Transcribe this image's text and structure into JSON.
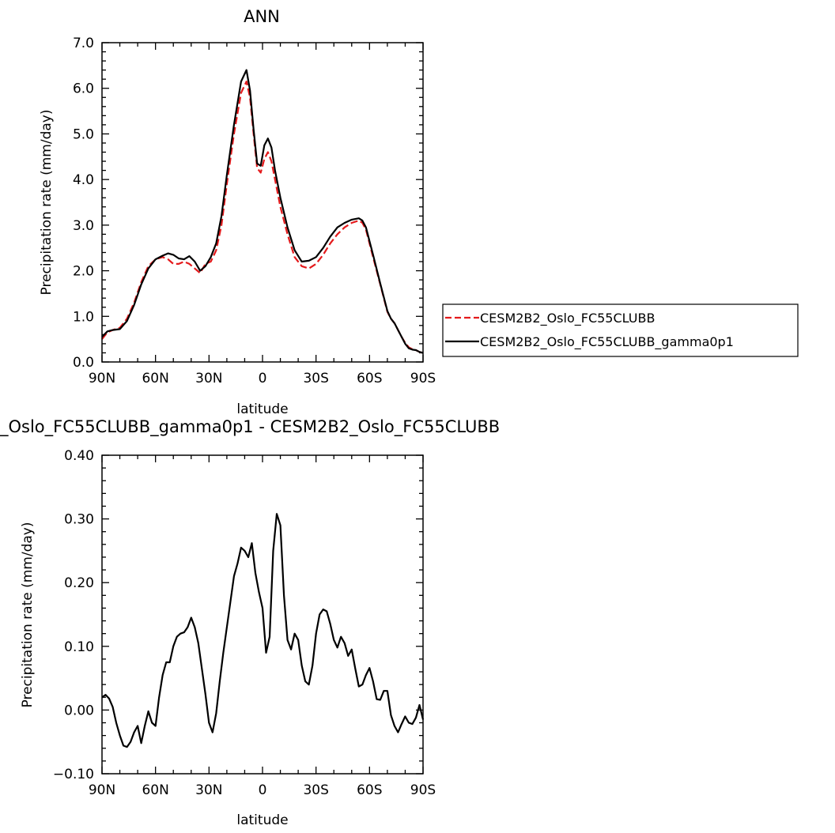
{
  "chart_data": [
    {
      "type": "line",
      "title": "ANN",
      "xlabel": "latitude",
      "ylabel": "Precipitation rate (mm/day)",
      "xlim": [
        90,
        -90
      ],
      "ylim": [
        0,
        7
      ],
      "xticks": [
        90,
        60,
        30,
        0,
        -30,
        -60,
        -90
      ],
      "xtick_labels": [
        "90N",
        "60N",
        "30N",
        "0",
        "30S",
        "60S",
        "90S"
      ],
      "yticks": [
        0,
        1,
        2,
        3,
        4,
        5,
        6,
        7
      ],
      "ytick_labels": [
        "0.0",
        "1.0",
        "2.0",
        "3.0",
        "4.0",
        "5.0",
        "6.0",
        "7.0"
      ],
      "grid": false,
      "legend_position": "right",
      "series": [
        {
          "name": "CESM2B2_Oslo_FC55CLUBB",
          "color": "#e41a1c",
          "dash": "dashed",
          "x": [
            90,
            87,
            84,
            80,
            76,
            72,
            68,
            64,
            60,
            56,
            53,
            50,
            47,
            44,
            41,
            38,
            35,
            32,
            29,
            26,
            23,
            20,
            16,
            12,
            9,
            7,
            5,
            3,
            1,
            -1,
            -3,
            -5,
            -7,
            -10,
            -14,
            -18,
            -22,
            -26,
            -30,
            -34,
            -38,
            -42,
            -46,
            -50,
            -54,
            -56,
            -58,
            -62,
            -66,
            -70,
            -72,
            -74,
            -76,
            -78,
            -80,
            -82,
            -84,
            -86,
            -88,
            -90
          ],
          "y": [
            0.5,
            0.65,
            0.7,
            0.75,
            0.95,
            1.3,
            1.75,
            2.1,
            2.25,
            2.3,
            2.25,
            2.15,
            2.15,
            2.2,
            2.15,
            2.05,
            1.95,
            2.15,
            2.2,
            2.45,
            3.0,
            3.9,
            5.0,
            5.9,
            6.15,
            5.8,
            5.0,
            4.25,
            4.15,
            4.45,
            4.6,
            4.4,
            4.0,
            3.4,
            2.8,
            2.3,
            2.1,
            2.05,
            2.15,
            2.35,
            2.6,
            2.8,
            2.95,
            3.05,
            3.1,
            3.05,
            2.9,
            2.3,
            1.7,
            1.1,
            0.95,
            0.85,
            0.7,
            0.55,
            0.42,
            0.32,
            0.28,
            0.26,
            0.22,
            0.2
          ]
        },
        {
          "name": "CESM2B2_Oslo_FC55CLUBB_gamma0p1",
          "color": "#000000",
          "dash": "solid",
          "x": [
            90,
            87,
            84,
            80,
            76,
            72,
            68,
            64,
            60,
            56,
            53,
            50,
            47,
            44,
            41,
            38,
            35,
            32,
            29,
            26,
            23,
            20,
            16,
            12,
            9,
            7,
            5,
            3,
            1,
            -1,
            -3,
            -5,
            -7,
            -10,
            -14,
            -18,
            -22,
            -26,
            -30,
            -34,
            -38,
            -42,
            -46,
            -50,
            -54,
            -56,
            -58,
            -62,
            -66,
            -70,
            -72,
            -74,
            -76,
            -78,
            -80,
            -82,
            -84,
            -86,
            -88,
            -90
          ],
          "y": [
            0.55,
            0.67,
            0.7,
            0.72,
            0.9,
            1.25,
            1.7,
            2.05,
            2.25,
            2.33,
            2.38,
            2.35,
            2.27,
            2.25,
            2.32,
            2.2,
            2.0,
            2.1,
            2.3,
            2.6,
            3.2,
            4.1,
            5.2,
            6.15,
            6.4,
            5.95,
            5.1,
            4.35,
            4.3,
            4.75,
            4.9,
            4.7,
            4.2,
            3.6,
            2.95,
            2.45,
            2.2,
            2.22,
            2.3,
            2.5,
            2.75,
            2.95,
            3.05,
            3.12,
            3.15,
            3.1,
            2.95,
            2.35,
            1.72,
            1.12,
            0.95,
            0.85,
            0.7,
            0.55,
            0.4,
            0.3,
            0.27,
            0.26,
            0.22,
            0.2
          ]
        }
      ]
    },
    {
      "type": "line",
      "title": "_Oslo_FC55CLUBB_gamma0p1 - CESM2B2_Oslo_FC55CLUBB",
      "xlabel": "latitude",
      "ylabel": "Precipitation rate (mm/day)",
      "xlim": [
        90,
        -90
      ],
      "ylim": [
        -0.1,
        0.4
      ],
      "xticks": [
        90,
        60,
        30,
        0,
        -30,
        -60,
        -90
      ],
      "xtick_labels": [
        "90N",
        "60N",
        "30N",
        "0",
        "30S",
        "60S",
        "90S"
      ],
      "yticks": [
        -0.1,
        0,
        0.1,
        0.2,
        0.3,
        0.4
      ],
      "ytick_labels": [
        "−0.10",
        "0.00",
        "0.10",
        "0.20",
        "0.30",
        "0.40"
      ],
      "grid": false,
      "series": [
        {
          "color": "#000000",
          "dash": "solid",
          "x": [
            90,
            88,
            86,
            84,
            82,
            80,
            78,
            76,
            74,
            72,
            70,
            68,
            66,
            64,
            62,
            60,
            58,
            56,
            54,
            52,
            50,
            48,
            46,
            44,
            42,
            40,
            38,
            36,
            34,
            32,
            30,
            28,
            26,
            24,
            22,
            20,
            18,
            16,
            14,
            12,
            10,
            8,
            6,
            4,
            2,
            0,
            -2,
            -4,
            -6,
            -8,
            -10,
            -12,
            -14,
            -16,
            -18,
            -20,
            -22,
            -24,
            -26,
            -28,
            -30,
            -32,
            -34,
            -36,
            -38,
            -40,
            -42,
            -44,
            -46,
            -48,
            -50,
            -52,
            -54,
            -56,
            -58,
            -60,
            -62,
            -64,
            -66,
            -68,
            -70,
            -72,
            -74,
            -76,
            -78,
            -80,
            -82,
            -84,
            -86,
            -88,
            -90
          ],
          "y": [
            0.02,
            0.024,
            0.018,
            0.005,
            -0.02,
            -0.04,
            -0.056,
            -0.058,
            -0.05,
            -0.035,
            -0.025,
            -0.052,
            -0.025,
            -0.002,
            -0.02,
            -0.025,
            0.02,
            0.055,
            0.075,
            0.075,
            0.1,
            0.115,
            0.12,
            0.122,
            0.13,
            0.145,
            0.13,
            0.105,
            0.065,
            0.025,
            -0.02,
            -0.035,
            -0.005,
            0.045,
            0.09,
            0.13,
            0.17,
            0.21,
            0.23,
            0.255,
            0.25,
            0.24,
            0.262,
            0.215,
            0.185,
            0.16,
            0.09,
            0.115,
            0.25,
            0.308,
            0.29,
            0.18,
            0.11,
            0.095,
            0.12,
            0.11,
            0.07,
            0.045,
            0.04,
            0.07,
            0.12,
            0.15,
            0.158,
            0.155,
            0.135,
            0.11,
            0.098,
            0.115,
            0.105,
            0.085,
            0.095,
            0.065,
            0.037,
            0.04,
            0.055,
            0.066,
            0.045,
            0.017,
            0.016,
            0.03,
            0.03,
            -0.008,
            -0.025,
            -0.035,
            -0.022,
            -0.01,
            -0.02,
            -0.022,
            -0.012,
            0.008,
            -0.015
          ]
        }
      ]
    }
  ],
  "legend": {
    "entries": [
      "CESM2B2_Oslo_FC55CLUBB",
      "CESM2B2_Oslo_FC55CLUBB_gamma0p1"
    ]
  }
}
